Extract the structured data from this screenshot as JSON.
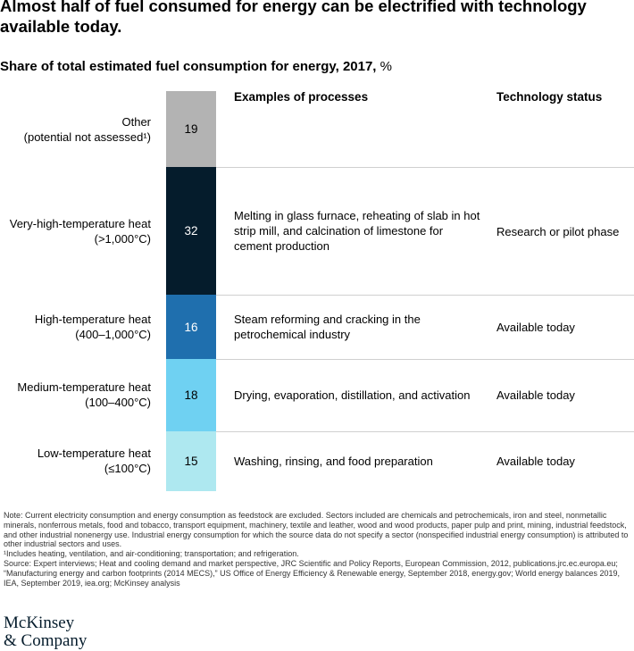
{
  "title": "Almost half of fuel consumed for energy can be electrified with technology available today.",
  "subtitle": {
    "bold": "Share of total estimated fuel consumption for energy, 2017,",
    "unit": " %"
  },
  "columns": {
    "processes": "Examples of processes",
    "status": "Technology status"
  },
  "chart_data": {
    "type": "bar",
    "orientation": "stacked-vertical",
    "title": "Share of total estimated fuel consumption for energy, 2017, %",
    "unit": "%",
    "categories": [
      "Other (potential not assessed¹)",
      "Very-high-temperature heat (>1,000°C)",
      "High-temperature heat (400–1,000°C)",
      "Medium-temperature heat (100–400°C)",
      "Low-temperature heat (≤100°C)"
    ],
    "values": [
      19,
      32,
      16,
      18,
      15
    ],
    "colors": [
      "#b3b3b3",
      "#051c2c",
      "#1f6fae",
      "#6fd1f2",
      "#aee8f0"
    ],
    "text_colors": [
      "#000000",
      "#ffffff",
      "#ffffff",
      "#000000",
      "#000000"
    ]
  },
  "rows": [
    {
      "label_line1": "Other",
      "label_line2": "(potential not assessed¹)",
      "value": "19",
      "process": "",
      "status": ""
    },
    {
      "label_line1": "Very-high-temperature heat",
      "label_line2": "(>1,000°C)",
      "value": "32",
      "process": "Melting in glass furnace, reheating of slab in hot strip mill, and calcination of limestone for cement production",
      "status": "Research or pilot phase"
    },
    {
      "label_line1": "High-temperature heat",
      "label_line2": "(400–1,000°C)",
      "value": "16",
      "process": "Steam reforming and cracking in the petrochemical industry",
      "status": "Available today"
    },
    {
      "label_line1": "Medium-temperature heat",
      "label_line2": "(100–400°C)",
      "value": "18",
      "process": "Drying, evaporation, distillation, and activation",
      "status": "Available today"
    },
    {
      "label_line1": "Low-temperature heat",
      "label_line2": "(≤100°C)",
      "value": "15",
      "process": "Washing, rinsing, and food preparation",
      "status": "Available today"
    }
  ],
  "notes": {
    "note": "Note: Current electricity consumption and energy consumption as feedstock are excluded. Sectors included are chemicals and petrochemicals, iron and steel, nonmetallic minerals, nonferrous metals, food and tobacco, transport equipment, machinery, textile and leather, wood and wood products, paper pulp and print, mining, industrial feedstock, and other industrial nonenergy use. Industrial energy consumption for which the source data do not specify a sector (nonspecified industrial energy consumption) is attributed to other industrial sectors and uses.",
    "footnote1": "¹Includes heating, ventilation, and air-conditioning; transportation; and refrigeration.",
    "source": "Source: Expert interviews; Heat and cooling demand and market perspective, JRC Scientific and Policy Reports, European Commission, 2012, publications.jrc.ec.europa.eu; “Manufacturing energy and carbon footprints (2014 MECS),” US Office of Energy Efficiency & Renewable energy, September 2018, energy.gov; World energy balances 2019, IEA, September 2019, iea.org; McKinsey analysis"
  },
  "logo": {
    "line1": "McKinsey",
    "line2": "& Company"
  }
}
